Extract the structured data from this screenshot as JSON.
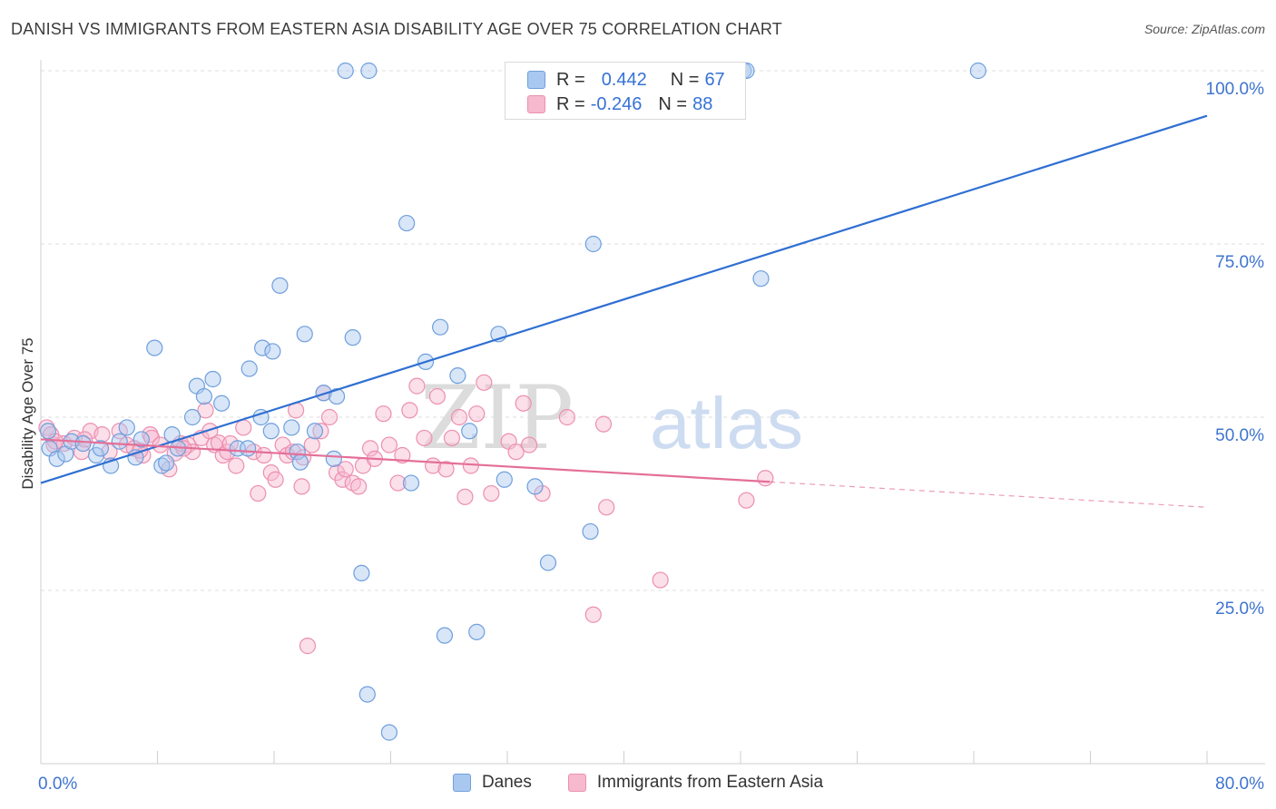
{
  "title": "DANISH VS IMMIGRANTS FROM EASTERN ASIA DISABILITY AGE OVER 75 CORRELATION CHART",
  "source": "Source: ZipAtlas.com",
  "watermark": {
    "zip": "ZIP",
    "atlas": "atlas"
  },
  "legend": {
    "danes": {
      "r_label": "R =",
      "r_value": "0.442",
      "n_label": "N =",
      "n_value": "67"
    },
    "eastern_asia": {
      "r_label": "R =",
      "r_value": "-0.246",
      "n_label": "N =",
      "n_value": "88"
    }
  },
  "bottom_legend": {
    "danes": "Danes",
    "eastern_asia": "Immigrants from Eastern Asia"
  },
  "colors": {
    "danes_fill": "#a9c8f0",
    "danes_stroke": "#6f9fdc",
    "danes_line": "#2f6fd2",
    "asia_fill": "#f6b9ce",
    "asia_stroke": "#ec8fb0",
    "asia_line": "#e46f98",
    "grid": "#dddddd",
    "tick_label": "#3f74cf"
  },
  "chart_data": {
    "type": "scatter",
    "title": "DANISH VS IMMIGRANTS FROM EASTERN ASIA DISABILITY AGE OVER 75 CORRELATION CHART",
    "xlabel": "",
    "ylabel": "Disability Age Over 75",
    "xlim": [
      0,
      80
    ],
    "ylim": [
      0,
      100
    ],
    "x_tick_labels": [
      "0.0%",
      "80.0%"
    ],
    "y_ticks": [
      25,
      50,
      75,
      100
    ],
    "y_tick_labels": [
      "25.0%",
      "50.0%",
      "75.0%",
      "100.0%"
    ],
    "grid": true,
    "legend_position": "top-center",
    "series": [
      {
        "name": "Danes",
        "r": 0.442,
        "n": 67,
        "trend": {
          "x": [
            0,
            80
          ],
          "y": [
            40.5,
            93.5
          ],
          "dashed_from": null
        },
        "points": [
          [
            0.5,
            48
          ],
          [
            0.6,
            45.5
          ],
          [
            1.1,
            44
          ],
          [
            1.7,
            44.7
          ],
          [
            2.1,
            46.5
          ],
          [
            2.9,
            46.2
          ],
          [
            3.8,
            44.5
          ],
          [
            4.1,
            45.5
          ],
          [
            4.8,
            43
          ],
          [
            5.4,
            46.5
          ],
          [
            5.9,
            48.5
          ],
          [
            6.5,
            44.2
          ],
          [
            6.9,
            46.8
          ],
          [
            7.8,
            60
          ],
          [
            8.3,
            43
          ],
          [
            8.6,
            43.4
          ],
          [
            9.0,
            47.5
          ],
          [
            9.4,
            45.5
          ],
          [
            10.4,
            50
          ],
          [
            10.7,
            54.5
          ],
          [
            11.2,
            53
          ],
          [
            11.8,
            55.5
          ],
          [
            12.4,
            52
          ],
          [
            13.5,
            45.5
          ],
          [
            14.2,
            45.5
          ],
          [
            14.3,
            57
          ],
          [
            15.1,
            50
          ],
          [
            15.2,
            60
          ],
          [
            15.8,
            48
          ],
          [
            15.9,
            59.5
          ],
          [
            16.4,
            69
          ],
          [
            17.2,
            48.5
          ],
          [
            17.6,
            45
          ],
          [
            17.8,
            43.5
          ],
          [
            18.1,
            62
          ],
          [
            18.8,
            48
          ],
          [
            19.4,
            53.5
          ],
          [
            20.3,
            53
          ],
          [
            20.1,
            44
          ],
          [
            20.9,
            100
          ],
          [
            21.4,
            61.5
          ],
          [
            22.0,
            27.5
          ],
          [
            22.4,
            10
          ],
          [
            22.5,
            100
          ],
          [
            23.9,
            4.5
          ],
          [
            25.1,
            78
          ],
          [
            25.4,
            40.5
          ],
          [
            26.4,
            58
          ],
          [
            27.4,
            63
          ],
          [
            27.7,
            18.5
          ],
          [
            28.6,
            56
          ],
          [
            29.9,
            19
          ],
          [
            29.4,
            48
          ],
          [
            31.4,
            62
          ],
          [
            31.8,
            41
          ],
          [
            33.9,
            40
          ],
          [
            34.8,
            29
          ],
          [
            37.7,
            33.5
          ],
          [
            37.9,
            75
          ],
          [
            38.3,
            100
          ],
          [
            39.2,
            100
          ],
          [
            47.4,
            100
          ],
          [
            48.2,
            100
          ],
          [
            48.4,
            100
          ],
          [
            49.4,
            70
          ],
          [
            64.3,
            100
          ],
          [
            39.6,
            100
          ]
        ]
      },
      {
        "name": "Immigrants from Eastern Asia",
        "r": -0.246,
        "n": 88,
        "trend": {
          "x": [
            0,
            80
          ],
          "y": [
            46.8,
            37
          ],
          "dashed_from": 50
        },
        "points": [
          [
            0.4,
            48.5
          ],
          [
            0.7,
            47.5
          ],
          [
            0.9,
            46
          ],
          [
            1.6,
            46.2
          ],
          [
            2.3,
            47
          ],
          [
            2.8,
            45
          ],
          [
            3.4,
            48
          ],
          [
            4.2,
            47.5
          ],
          [
            4.7,
            45
          ],
          [
            5.4,
            48
          ],
          [
            5.9,
            46
          ],
          [
            6.4,
            45.5
          ],
          [
            7.0,
            44.5
          ],
          [
            7.5,
            47.5
          ],
          [
            7.6,
            47
          ],
          [
            8.2,
            46
          ],
          [
            8.8,
            42.5
          ],
          [
            9.2,
            44.8
          ],
          [
            9.6,
            46.2
          ],
          [
            10.1,
            46
          ],
          [
            10.4,
            45
          ],
          [
            11.0,
            47
          ],
          [
            11.3,
            51
          ],
          [
            11.6,
            48
          ],
          [
            11.9,
            46
          ],
          [
            12.2,
            46.3
          ],
          [
            12.5,
            44.5
          ],
          [
            12.8,
            45
          ],
          [
            13.4,
            43
          ],
          [
            13.9,
            48.5
          ],
          [
            14.6,
            45
          ],
          [
            14.9,
            39
          ],
          [
            15.3,
            44.5
          ],
          [
            15.8,
            42
          ],
          [
            16.1,
            41
          ],
          [
            16.6,
            46
          ],
          [
            16.9,
            44.5
          ],
          [
            17.3,
            45
          ],
          [
            17.5,
            51
          ],
          [
            17.9,
            40
          ],
          [
            18.3,
            17
          ],
          [
            18.6,
            46
          ],
          [
            19.2,
            48
          ],
          [
            19.4,
            53.5
          ],
          [
            19.8,
            50
          ],
          [
            20.3,
            42
          ],
          [
            20.7,
            41
          ],
          [
            20.9,
            42.5
          ],
          [
            21.4,
            40.5
          ],
          [
            21.8,
            40
          ],
          [
            22.1,
            43
          ],
          [
            22.6,
            45.5
          ],
          [
            22.9,
            44
          ],
          [
            23.5,
            50.5
          ],
          [
            23.9,
            46
          ],
          [
            24.5,
            40.5
          ],
          [
            24.8,
            44.5
          ],
          [
            25.3,
            51
          ],
          [
            25.8,
            54.5
          ],
          [
            26.3,
            47
          ],
          [
            26.9,
            43
          ],
          [
            27.2,
            53
          ],
          [
            27.8,
            42.5
          ],
          [
            28.2,
            47
          ],
          [
            28.7,
            50
          ],
          [
            29.1,
            38.5
          ],
          [
            29.5,
            43
          ],
          [
            29.9,
            50.5
          ],
          [
            30.4,
            55
          ],
          [
            30.9,
            39
          ],
          [
            32.1,
            46.5
          ],
          [
            32.6,
            45
          ],
          [
            33.1,
            52
          ],
          [
            33.5,
            46
          ],
          [
            34.4,
            39
          ],
          [
            36.1,
            50
          ],
          [
            37.9,
            21.5
          ],
          [
            38.6,
            49
          ],
          [
            38.8,
            37
          ],
          [
            42.5,
            26.5
          ],
          [
            48.4,
            38
          ],
          [
            49.7,
            41.2
          ],
          [
            1.0,
            46.5
          ],
          [
            3.0,
            46.8
          ],
          [
            6.8,
            45.2
          ],
          [
            9.8,
            45.5
          ],
          [
            13.0,
            46.2
          ],
          [
            18.0,
            44.2
          ]
        ]
      }
    ]
  }
}
